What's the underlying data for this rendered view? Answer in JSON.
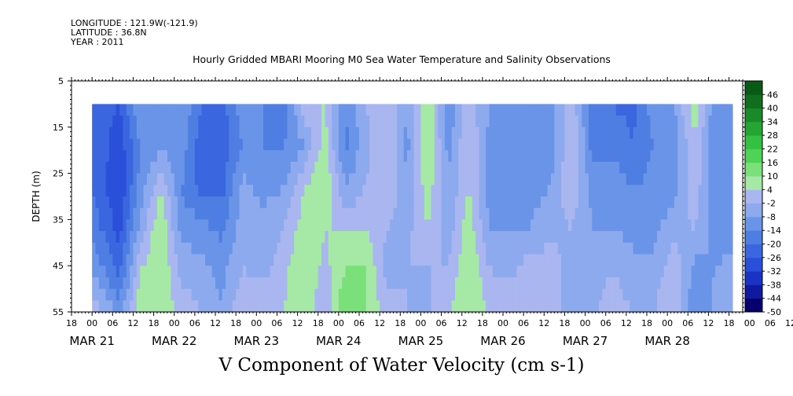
{
  "header": {
    "longitude": "LONGITUDE : 121.9W(-121.9)",
    "latitude": "LATITUDE : 36.8N",
    "year": "YEAR : 2011"
  },
  "chart_data": {
    "type": "heatmap",
    "title": "Hourly Gridded MBARI Mooring M0 Sea Water Temperature and Salinity Observations",
    "xlabel": "V Component of Water Velocity (cm s-1)",
    "ylabel": "DEPTH (m)",
    "ylim": [
      55,
      5
    ],
    "yticks": [
      5,
      15,
      25,
      35,
      45,
      55
    ],
    "data_depth_range": [
      10,
      55
    ],
    "x_start": "2011-03-20T18:00",
    "x_end": "2011-03-28T22:00",
    "data_time_range": [
      "2011-03-21T00:00",
      "2011-03-28T19:00"
    ],
    "xticks_hours": [
      "18",
      "00",
      "06",
      "12",
      "18",
      "00",
      "06",
      "12",
      "18",
      "00",
      "06",
      "12",
      "18",
      "00",
      "06",
      "12",
      "18",
      "00",
      "06",
      "12",
      "18",
      "00",
      "06",
      "12",
      "18",
      "00",
      "06",
      "12",
      "18",
      "00",
      "06",
      "12",
      "18",
      "00",
      "06",
      "12"
    ],
    "xticks_dates": [
      "MAR 21",
      "MAR 22",
      "MAR 23",
      "MAR 24",
      "MAR 25",
      "MAR 26",
      "MAR 27",
      "MAR 28"
    ],
    "colorbar": {
      "levels": [
        -50,
        -44,
        -38,
        -32,
        -26,
        -20,
        -14,
        -8,
        -2,
        4,
        10,
        16,
        22,
        28,
        34,
        40,
        46
      ],
      "labels": [
        "46",
        "40",
        "34",
        "28",
        "22",
        "16",
        "10",
        "4",
        "-2",
        "-8",
        "-14",
        "-20",
        "-26",
        "-32",
        "-38",
        "-44",
        "-50"
      ],
      "colors": [
        "#07006f",
        "#0f1aa0",
        "#1a33c4",
        "#2a4fd9",
        "#3a67e0",
        "#4f7ee3",
        "#6a94e8",
        "#8eaaee",
        "#a9b6f0",
        "#a6e8a6",
        "#79e07a",
        "#4fd357",
        "#33c043",
        "#25a534",
        "#1a8a28",
        "#106e1e",
        "#0a5a17"
      ]
    },
    "profiles": [
      {
        "t": "2011-03-21T00:00",
        "v": [
          -20,
          -20,
          -20,
          -16,
          -8,
          2
        ]
      },
      {
        "t": "2011-03-21T08:00",
        "v": [
          -26,
          -30,
          -32,
          -28,
          -22,
          -10
        ]
      },
      {
        "t": "2011-03-21T14:00",
        "v": [
          -8,
          -14,
          -12,
          -6,
          4,
          8
        ]
      },
      {
        "t": "2011-03-21T20:00",
        "v": [
          -8,
          -10,
          4,
          10,
          10,
          8
        ]
      },
      {
        "t": "2011-03-22T02:00",
        "v": [
          -8,
          -10,
          -14,
          -10,
          -4,
          2
        ]
      },
      {
        "t": "2011-03-22T08:00",
        "v": [
          -20,
          -24,
          -22,
          -12,
          -6,
          -2
        ]
      },
      {
        "t": "2011-03-22T14:00",
        "v": [
          -22,
          -24,
          -22,
          -16,
          -10,
          -8
        ]
      },
      {
        "t": "2011-03-22T20:00",
        "v": [
          -10,
          -14,
          -6,
          -4,
          -2,
          4
        ]
      },
      {
        "t": "2011-03-23T02:00",
        "v": [
          -14,
          -14,
          -10,
          -6,
          -4,
          2
        ]
      },
      {
        "t": "2011-03-23T08:00",
        "v": [
          -18,
          -14,
          -8,
          -2,
          2,
          4
        ]
      },
      {
        "t": "2011-03-23T14:00",
        "v": [
          2,
          -8,
          4,
          8,
          10,
          10
        ]
      },
      {
        "t": "2011-03-23T20:00",
        "v": [
          4,
          8,
          10,
          4,
          2,
          -2
        ]
      },
      {
        "t": "2011-03-24T02:00",
        "v": [
          -14,
          -16,
          -8,
          4,
          10,
          16
        ]
      },
      {
        "t": "2011-03-24T08:00",
        "v": [
          -2,
          -4,
          -2,
          4,
          10,
          10
        ]
      },
      {
        "t": "2011-03-24T14:00",
        "v": [
          4,
          4,
          4,
          -2,
          -4,
          2
        ]
      },
      {
        "t": "2011-03-24T20:00",
        "v": [
          -8,
          -10,
          -8,
          -4,
          -2,
          -2
        ]
      },
      {
        "t": "2011-03-25T02:00",
        "v": [
          10,
          10,
          8,
          4,
          -2,
          -4
        ]
      },
      {
        "t": "2011-03-25T08:00",
        "v": [
          -14,
          -10,
          -8,
          -6,
          -2,
          4
        ]
      },
      {
        "t": "2011-03-25T14:00",
        "v": [
          2,
          4,
          4,
          8,
          10,
          10
        ]
      },
      {
        "t": "2011-03-25T20:00",
        "v": [
          -8,
          -10,
          -10,
          -8,
          -2,
          4
        ]
      },
      {
        "t": "2011-03-26T02:00",
        "v": [
          -8,
          -10,
          -10,
          -8,
          -4,
          2
        ]
      },
      {
        "t": "2011-03-26T08:00",
        "v": [
          -14,
          -12,
          -10,
          -8,
          2,
          -2
        ]
      },
      {
        "t": "2011-03-26T14:00",
        "v": [
          -10,
          -12,
          -8,
          -4,
          2,
          4
        ]
      },
      {
        "t": "2011-03-26T20:00",
        "v": [
          2,
          4,
          4,
          -2,
          -6,
          -8
        ]
      },
      {
        "t": "2011-03-27T02:00",
        "v": [
          -16,
          -16,
          -10,
          -8,
          -6,
          -4
        ]
      },
      {
        "t": "2011-03-27T08:00",
        "v": [
          -20,
          -16,
          -10,
          -8,
          -2,
          2
        ]
      },
      {
        "t": "2011-03-27T14:00",
        "v": [
          -22,
          -20,
          -14,
          -10,
          -6,
          -2
        ]
      },
      {
        "t": "2011-03-27T20:00",
        "v": [
          -10,
          -14,
          -12,
          -10,
          -6,
          -2
        ]
      },
      {
        "t": "2011-03-28T02:00",
        "v": [
          -8,
          -12,
          -10,
          -4,
          2,
          4
        ]
      },
      {
        "t": "2011-03-28T08:00",
        "v": [
          8,
          4,
          2,
          -2,
          -10,
          -14
        ]
      },
      {
        "t": "2011-03-28T14:00",
        "v": [
          -12,
          -14,
          -14,
          -10,
          -8,
          -6
        ]
      },
      {
        "t": "2011-03-28T19:00",
        "v": [
          -10,
          -12,
          -12,
          -10,
          -6,
          -4
        ]
      }
    ],
    "profile_depths": [
      10,
      19,
      28,
      37,
      46,
      55
    ]
  }
}
